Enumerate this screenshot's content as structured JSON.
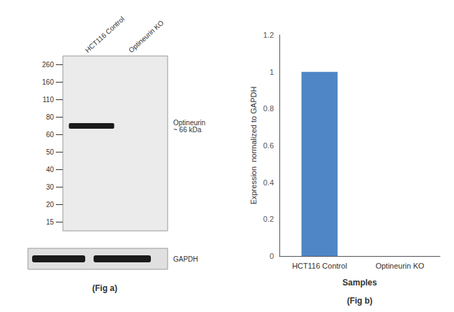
{
  "chart_data": [
    {
      "type": "blot",
      "yticks": [
        260,
        160,
        110,
        80,
        60,
        50,
        40,
        30,
        20,
        15
      ],
      "categories": [
        "HCT116 Control",
        "Optineurin KO"
      ],
      "annotations": [
        "Optineurin\n~ 66 kDa",
        "GAPDH"
      ],
      "caption": "(Fig a)",
      "color": "#1a1a1a"
    },
    {
      "type": "bar",
      "categories": [
        "HCT116 Control",
        "Optineurin KO"
      ],
      "values": [
        1.0,
        0.0
      ],
      "color": "#4f86c6",
      "ylim": [
        0,
        1.2
      ],
      "yticks": [
        0,
        0.2,
        0.4,
        0.6,
        0.8,
        1.0,
        1.2
      ],
      "ylabel": "Expression  normalized to GAPDH",
      "xlabel": "Samples",
      "caption": "(Fig b)",
      "grid": false
    }
  ]
}
